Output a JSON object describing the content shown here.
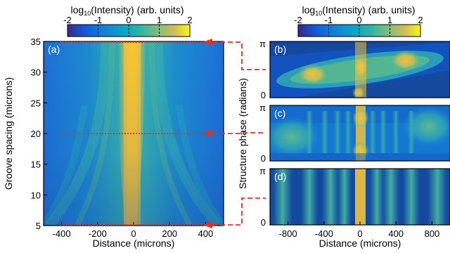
{
  "colorbar": {
    "label_main": "log",
    "label_sub": "10",
    "label_rest": "(Intensity) (arb. units)",
    "ticks": [
      "-2",
      "-1",
      "0",
      "1",
      "2"
    ],
    "range": [
      -2,
      2
    ],
    "colormap": "parula"
  },
  "colors": {
    "arrow": "#ee2b1c",
    "dark_blue": "#3a2a8e",
    "yellow": "#f7e61f"
  },
  "chart_data": [
    {
      "id": "a",
      "type": "heatmap",
      "panel_label": "(a)",
      "xlabel": "Distance (microns)",
      "ylabel": "Groove spacing (microns)",
      "xlim": [
        -500,
        500
      ],
      "ylim": [
        5,
        35
      ],
      "xticks": [
        "-400",
        "-200",
        "0",
        "200",
        "400"
      ],
      "yticks": [
        "5",
        "10",
        "15",
        "20",
        "25",
        "30",
        "35"
      ],
      "marked_rows": [
        35,
        20,
        5
      ],
      "description_values": {
        "central_beam_x": 0,
        "peak_log_intensity": 1.6
      }
    },
    {
      "id": "b",
      "type": "heatmap",
      "panel_label": "(b)",
      "groove_spacing": 35,
      "ylim": [
        "0",
        "π"
      ]
    },
    {
      "id": "c",
      "type": "heatmap",
      "panel_label": "(c)",
      "groove_spacing": 20,
      "ylim": [
        "0",
        "π"
      ]
    },
    {
      "id": "d",
      "type": "heatmap",
      "panel_label": "(d)",
      "groove_spacing": 5,
      "ylim": [
        "0",
        "π"
      ],
      "xlabel": "Distance (microns)",
      "xlim": [
        -1000,
        1000
      ],
      "xticks": [
        "-800",
        "-400",
        "0",
        "400",
        "800"
      ]
    }
  ],
  "shared": {
    "right_ylabel": "Structure phase (radians)"
  }
}
